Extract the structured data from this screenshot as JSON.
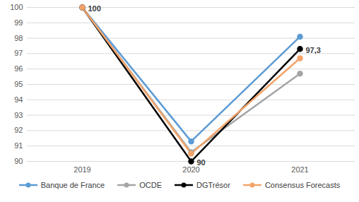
{
  "chart_data": {
    "type": "line",
    "categories": [
      "2019",
      "2020",
      "2021"
    ],
    "series": [
      {
        "name": "Banque de France",
        "color": "#5b9bd5",
        "marker": "circle",
        "values": [
          100,
          91.3,
          98.1
        ]
      },
      {
        "name": "OCDE",
        "color": "#a5a5a5",
        "marker": "circle",
        "values": [
          100,
          90.6,
          95.7
        ]
      },
      {
        "name": "DGTrésor",
        "color": "#000000",
        "marker": "circle",
        "values": [
          100,
          90,
          97.3
        ],
        "data_labels": true,
        "value_labels": [
          "100",
          "90",
          "97,3"
        ]
      },
      {
        "name": "Consensus Forecasts",
        "color": "#f4a46a",
        "marker": "circle",
        "values": [
          100,
          90.5,
          96.7
        ]
      }
    ],
    "ylim": [
      90,
      100
    ],
    "yticks": [
      90,
      91,
      92,
      93,
      94,
      95,
      96,
      97,
      98,
      99,
      100
    ],
    "grid": true,
    "legend": "bottom"
  }
}
